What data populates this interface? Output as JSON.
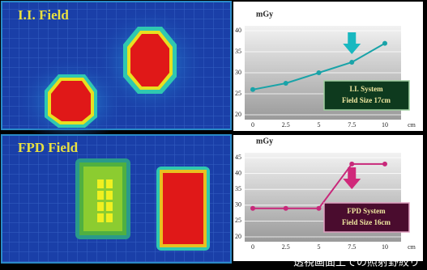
{
  "panels": [
    {
      "title": "I.I. Field"
    },
    {
      "title": "FPD Field"
    }
  ],
  "caption": "透視画面上での照射野絞り",
  "chart_data": [
    {
      "type": "line",
      "ylabel": "mGy",
      "xlabel": "cm",
      "annotation": [
        "I.I. System",
        "Field Size 17cm"
      ],
      "x": [
        0,
        2.5,
        5,
        7.5,
        10
      ],
      "xlim": [
        0,
        10
      ],
      "xticks": [
        0,
        2.5,
        5,
        7.5,
        10
      ],
      "ylim": [
        20,
        40
      ],
      "yticks": [
        20,
        25,
        30,
        35,
        40
      ],
      "grid": true,
      "series": [
        {
          "color": "#19a3a8",
          "values": [
            26,
            27.5,
            30,
            32.5,
            37
          ]
        }
      ]
    },
    {
      "type": "line",
      "ylabel": "mGy",
      "xlabel": "cm",
      "annotation": [
        "FPD System",
        "Field Size 16cm"
      ],
      "x": [
        0,
        2.5,
        5,
        7.5,
        10
      ],
      "xlim": [
        0,
        10
      ],
      "xticks": [
        0,
        2.5,
        5,
        7.5,
        10
      ],
      "ylim": [
        20,
        45
      ],
      "yticks": [
        20,
        25,
        30,
        35,
        40,
        45
      ],
      "grid": true,
      "series": [
        {
          "color": "#c8287a",
          "values": [
            29,
            29,
            29,
            43,
            43
          ]
        }
      ]
    }
  ]
}
